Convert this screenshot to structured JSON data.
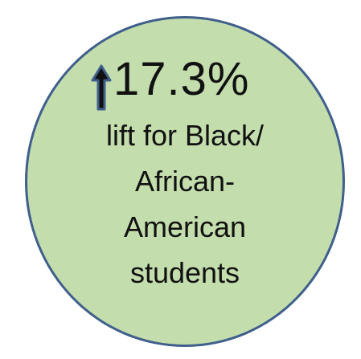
{
  "stat": {
    "value": "17.3%",
    "direction_icon": "up-arrow-icon"
  },
  "caption": {
    "lines": [
      "lift for Black/",
      "African-",
      "American",
      "students"
    ]
  },
  "colors": {
    "circle_fill": "#c3ddac",
    "circle_border": "#3f5f8c",
    "arrow_fill": "#111111",
    "arrow_outline": "#3f5f8c",
    "text": "#111111"
  }
}
